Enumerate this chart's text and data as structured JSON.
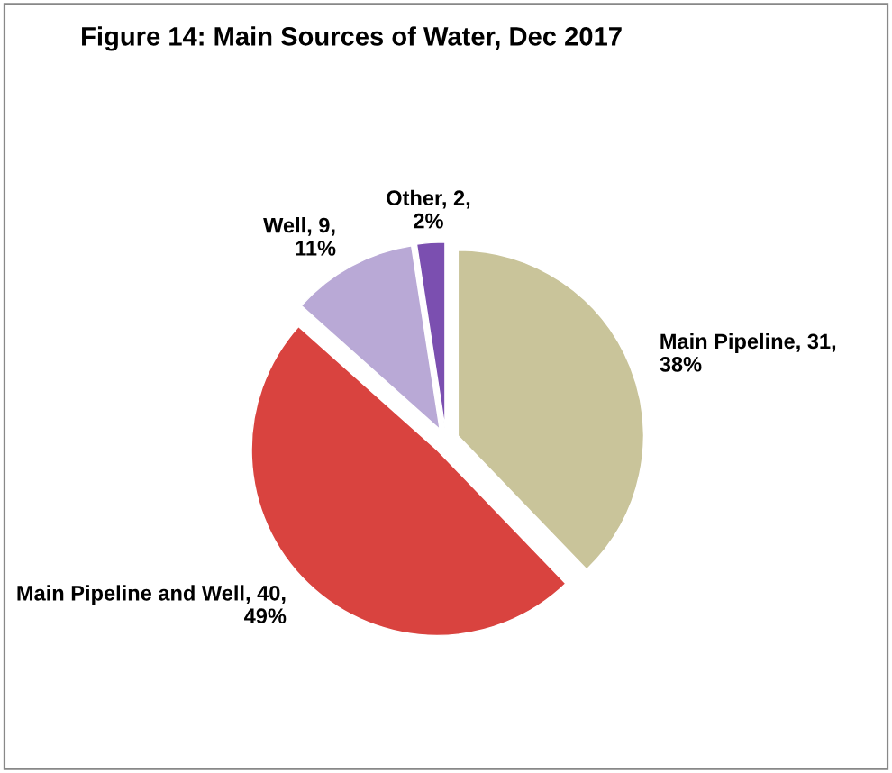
{
  "chart_data": {
    "type": "pie",
    "title": "Figure 14: Main Sources of Water, Dec 2017",
    "categories": [
      "Main Pipeline",
      "Main Pipeline and Well",
      "Well",
      "Other"
    ],
    "values": [
      31,
      40,
      9,
      2
    ],
    "value_labels": [
      "31,\n38%",
      "40,\n49%",
      "9,\n11%",
      "2,\n2%"
    ],
    "colors": [
      "#c9c49a",
      "#d9433f",
      "#b9a9d6",
      "#7b4fb0"
    ],
    "legend": false
  }
}
